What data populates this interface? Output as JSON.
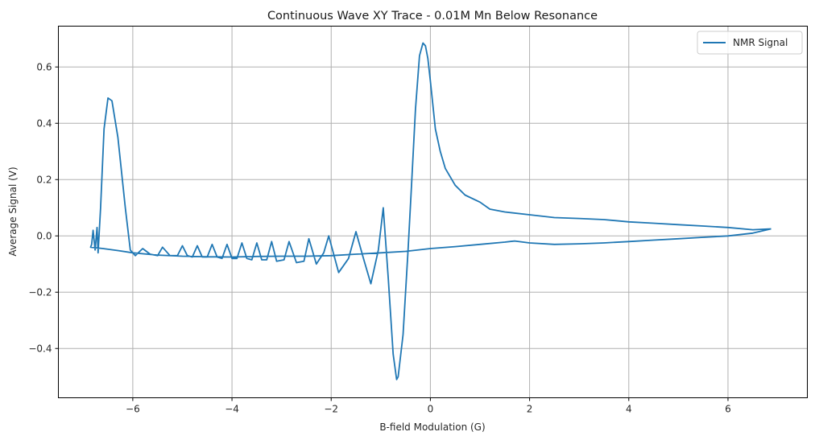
{
  "chart_data": {
    "type": "line",
    "title": "Continuous Wave XY Trace - 0.01M Mn Below Resonance",
    "xlabel": "B-field Modulation (G)",
    "ylabel": "Average Signal (V)",
    "xlim": [
      -7.5,
      7.6
    ],
    "ylim": [
      -0.575,
      0.745
    ],
    "xticks": [
      -6,
      -4,
      -2,
      0,
      2,
      4,
      6
    ],
    "xtick_labels": [
      "−6",
      "−4",
      "−2",
      "0",
      "2",
      "4",
      "6"
    ],
    "yticks": [
      -0.4,
      -0.2,
      0.0,
      0.2,
      0.4,
      0.6
    ],
    "ytick_labels": [
      "−0.4",
      "−0.2",
      "0.0",
      "0.2",
      "0.4",
      "0.6"
    ],
    "grid": true,
    "legend": {
      "position": "top-right",
      "entries": [
        "NMR Signal"
      ]
    },
    "series": [
      {
        "name": "NMR Signal",
        "color": "#1f77b4",
        "points": [
          [
            6.87,
            0.025
          ],
          [
            6.5,
            0.022
          ],
          [
            6.0,
            0.03
          ],
          [
            5.5,
            0.035
          ],
          [
            5.0,
            0.04
          ],
          [
            4.5,
            0.045
          ],
          [
            4.0,
            0.05
          ],
          [
            3.5,
            0.058
          ],
          [
            3.0,
            0.062
          ],
          [
            2.5,
            0.065
          ],
          [
            2.0,
            0.075
          ],
          [
            1.5,
            0.085
          ],
          [
            1.2,
            0.095
          ],
          [
            1.0,
            0.12
          ],
          [
            0.7,
            0.145
          ],
          [
            0.5,
            0.18
          ],
          [
            0.3,
            0.24
          ],
          [
            0.2,
            0.3
          ],
          [
            0.1,
            0.38
          ],
          [
            0.0,
            0.55
          ],
          [
            -0.05,
            0.63
          ],
          [
            -0.1,
            0.675
          ],
          [
            -0.15,
            0.685
          ],
          [
            -0.22,
            0.64
          ],
          [
            -0.3,
            0.45
          ],
          [
            -0.38,
            0.18
          ],
          [
            -0.45,
            -0.05
          ],
          [
            -0.55,
            -0.35
          ],
          [
            -0.65,
            -0.5
          ],
          [
            -0.68,
            -0.51
          ],
          [
            -0.75,
            -0.42
          ],
          [
            -0.85,
            -0.15
          ],
          [
            -0.95,
            0.1
          ],
          [
            -1.05,
            -0.05
          ],
          [
            -1.2,
            -0.17
          ],
          [
            -1.35,
            -0.08
          ],
          [
            -1.5,
            0.015
          ],
          [
            -1.65,
            -0.08
          ],
          [
            -1.85,
            -0.13
          ],
          [
            -2.05,
            0.0
          ],
          [
            -2.15,
            -0.06
          ],
          [
            -2.3,
            -0.1
          ],
          [
            -2.45,
            -0.01
          ],
          [
            -2.55,
            -0.09
          ],
          [
            -2.7,
            -0.095
          ],
          [
            -2.85,
            -0.02
          ],
          [
            -2.95,
            -0.085
          ],
          [
            -3.1,
            -0.09
          ],
          [
            -3.2,
            -0.02
          ],
          [
            -3.3,
            -0.085
          ],
          [
            -3.4,
            -0.085
          ],
          [
            -3.5,
            -0.025
          ],
          [
            -3.6,
            -0.085
          ],
          [
            -3.7,
            -0.08
          ],
          [
            -3.8,
            -0.025
          ],
          [
            -3.9,
            -0.08
          ],
          [
            -4.0,
            -0.08
          ],
          [
            -4.1,
            -0.03
          ],
          [
            -4.2,
            -0.08
          ],
          [
            -4.3,
            -0.075
          ],
          [
            -4.4,
            -0.03
          ],
          [
            -4.5,
            -0.075
          ],
          [
            -4.6,
            -0.075
          ],
          [
            -4.7,
            -0.035
          ],
          [
            -4.8,
            -0.075
          ],
          [
            -4.9,
            -0.07
          ],
          [
            -5.0,
            -0.035
          ],
          [
            -5.1,
            -0.07
          ],
          [
            -5.25,
            -0.07
          ],
          [
            -5.4,
            -0.04
          ],
          [
            -5.5,
            -0.07
          ],
          [
            -5.65,
            -0.065
          ],
          [
            -5.8,
            -0.045
          ],
          [
            -5.95,
            -0.07
          ],
          [
            -6.05,
            -0.05
          ],
          [
            -6.15,
            0.1
          ],
          [
            -6.3,
            0.35
          ],
          [
            -6.42,
            0.48
          ],
          [
            -6.5,
            0.49
          ],
          [
            -6.58,
            0.38
          ],
          [
            -6.65,
            0.1
          ],
          [
            -6.7,
            -0.06
          ],
          [
            -6.72,
            0.03
          ],
          [
            -6.76,
            -0.05
          ],
          [
            -6.8,
            0.02
          ],
          [
            -6.83,
            -0.03
          ],
          [
            -6.85,
            -0.04
          ],
          [
            -6.6,
            -0.045
          ],
          [
            -6.3,
            -0.052
          ],
          [
            -6.0,
            -0.06
          ],
          [
            -5.5,
            -0.068
          ],
          [
            -5.0,
            -0.072
          ],
          [
            -4.5,
            -0.074
          ],
          [
            -4.0,
            -0.075
          ],
          [
            -3.5,
            -0.073
          ],
          [
            -3.0,
            -0.072
          ],
          [
            -2.5,
            -0.072
          ],
          [
            -2.0,
            -0.07
          ],
          [
            -1.5,
            -0.065
          ],
          [
            -1.0,
            -0.06
          ],
          [
            -0.5,
            -0.055
          ],
          [
            0.0,
            -0.045
          ],
          [
            0.5,
            -0.038
          ],
          [
            1.0,
            -0.03
          ],
          [
            1.5,
            -0.022
          ],
          [
            1.7,
            -0.018
          ],
          [
            2.0,
            -0.025
          ],
          [
            2.5,
            -0.03
          ],
          [
            3.0,
            -0.028
          ],
          [
            3.5,
            -0.025
          ],
          [
            4.0,
            -0.02
          ],
          [
            4.5,
            -0.015
          ],
          [
            5.0,
            -0.01
          ],
          [
            5.5,
            -0.005
          ],
          [
            6.0,
            0.0
          ],
          [
            6.5,
            0.01
          ],
          [
            6.87,
            0.025
          ]
        ]
      }
    ]
  }
}
